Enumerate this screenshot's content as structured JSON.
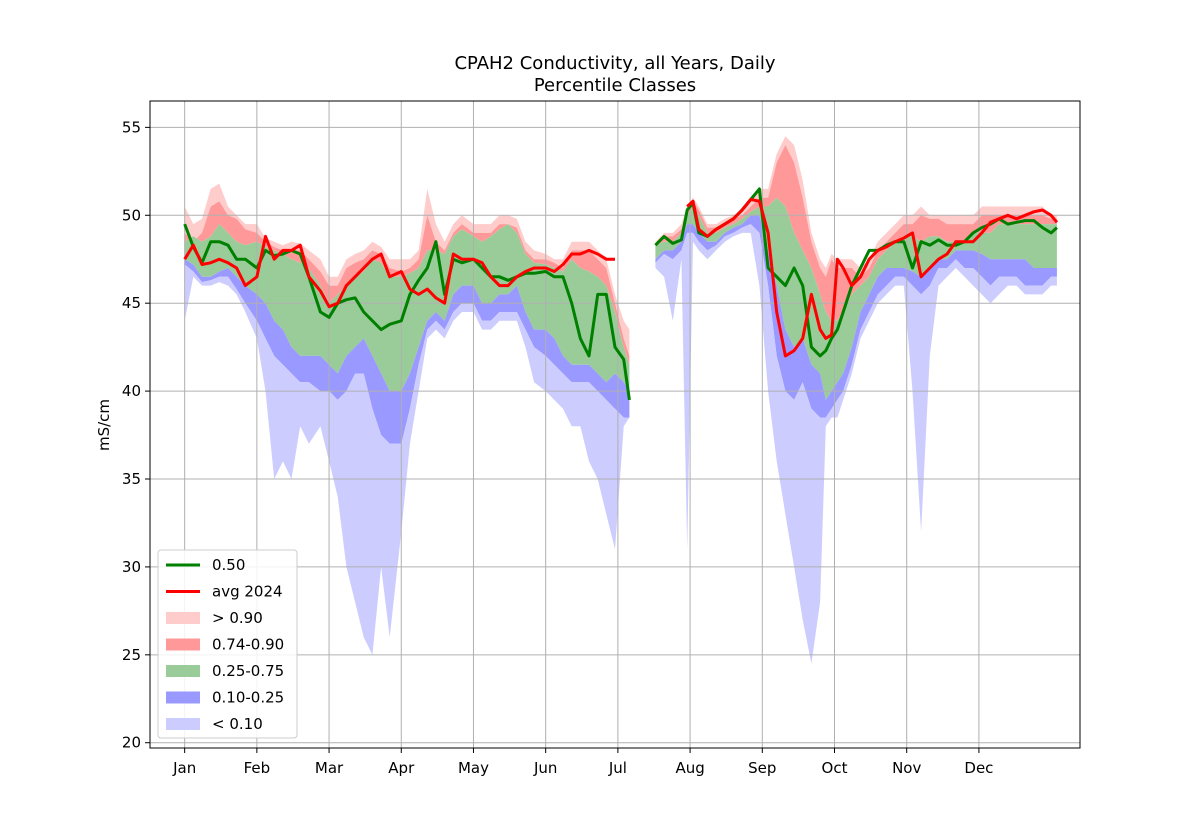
{
  "chart_data": {
    "type": "area",
    "title": "CPAH2 Conductivity, all Years, Daily",
    "subtitle": "Percentile Classes",
    "xlabel": "",
    "ylabel": "mS/cm",
    "ylim": [
      19.7,
      56.5
    ],
    "xlim": [
      -12,
      310
    ],
    "yticks": [
      20,
      25,
      30,
      35,
      40,
      45,
      50,
      55
    ],
    "categories": [
      "Jan",
      "Feb",
      "Mar",
      "Apr",
      "May",
      "Jun",
      "Jul",
      "Aug",
      "Sep",
      "Oct",
      "Nov",
      "Dec"
    ],
    "category_positions": [
      0,
      25,
      50,
      75,
      100,
      125,
      150,
      175,
      200,
      225,
      250,
      275
    ],
    "grid": true,
    "legend_position": "lower-left",
    "colors": {
      "median": "#008000",
      "avg": "#ff0000",
      "above_90": "#ffcccc",
      "p74_90": "#ff9999",
      "p25_75": "#99cc99",
      "p10_25": "#9999ff",
      "below_10": "#ccccff"
    },
    "legend": [
      {
        "label": "0.50",
        "kind": "line",
        "color": "#008000"
      },
      {
        "label": "avg 2024",
        "kind": "line",
        "color": "#ff0000"
      },
      {
        "label": "> 0.90",
        "kind": "patch",
        "color": "#ffcccc"
      },
      {
        "label": "0.74-0.90",
        "kind": "patch",
        "color": "#ff9999"
      },
      {
        "label": "0.25-0.75",
        "kind": "patch",
        "color": "#99cc99"
      },
      {
        "label": "0.10-0.25",
        "kind": "patch",
        "color": "#9999ff"
      },
      {
        "label": "< 0.10",
        "kind": "patch",
        "color": "#ccccff"
      }
    ],
    "segments": [
      {
        "x": [
          0,
          3,
          6,
          9,
          12,
          15,
          18,
          21,
          25,
          28,
          31,
          34,
          37,
          40,
          43,
          47,
          50,
          53,
          56,
          59,
          62,
          65,
          68,
          71,
          75,
          78,
          81,
          84,
          87,
          90,
          93,
          96,
          100,
          103,
          106,
          109,
          112,
          115,
          118,
          121,
          125,
          128,
          131,
          134,
          137,
          140,
          143,
          146,
          149,
          152,
          154
        ],
        "p100": [
          50.5,
          49.5,
          49.8,
          51.5,
          51.8,
          50.5,
          50.0,
          49.5,
          49.5,
          48.7,
          48.5,
          48.3,
          48.5,
          48.4,
          48.0,
          47.5,
          46.5,
          46.5,
          47.5,
          47.8,
          48.0,
          48.5,
          48.2,
          47.5,
          47.5,
          47.5,
          48.0,
          51.5,
          49.5,
          48.5,
          49.5,
          50.0,
          49.5,
          49.5,
          49.5,
          50.0,
          50.0,
          49.8,
          48.5,
          48.0,
          47.8,
          47.5,
          47.5,
          48.5,
          48.5,
          48.5,
          48.0,
          47.5,
          45.5,
          44.0,
          43.5
        ],
        "p90": [
          49.0,
          48.5,
          49.0,
          50.5,
          50.8,
          50.0,
          49.8,
          49.2,
          49.0,
          48.5,
          48.2,
          48.0,
          48.0,
          48.0,
          47.5,
          46.8,
          46.0,
          46.0,
          47.0,
          47.3,
          47.5,
          48.0,
          47.8,
          47.0,
          46.8,
          47.0,
          47.5,
          50.0,
          48.5,
          48.0,
          49.0,
          49.5,
          49.0,
          49.0,
          49.0,
          49.5,
          49.5,
          49.3,
          48.0,
          47.5,
          47.5,
          47.3,
          47.0,
          48.0,
          48.0,
          48.0,
          47.5,
          47.0,
          45.0,
          43.0,
          42.0
        ],
        "p75": [
          48.5,
          48.8,
          48.5,
          48.8,
          49.5,
          49.0,
          48.5,
          48.3,
          48.5,
          48.2,
          48.0,
          47.8,
          47.5,
          47.3,
          47.0,
          46.0,
          45.0,
          45.5,
          46.0,
          46.5,
          46.8,
          47.5,
          47.3,
          46.5,
          46.5,
          46.7,
          47.0,
          48.0,
          48.0,
          47.8,
          48.8,
          49.2,
          48.8,
          48.5,
          48.8,
          49.2,
          49.5,
          49.0,
          47.8,
          47.3,
          47.2,
          47.0,
          46.8,
          47.5,
          47.0,
          46.8,
          46.5,
          46.0,
          44.5,
          42.5,
          41.5
        ],
        "p25": [
          47.5,
          47.2,
          46.5,
          46.5,
          46.8,
          47.0,
          46.5,
          46.0,
          45.5,
          45.0,
          44.0,
          43.5,
          42.5,
          42.0,
          42.0,
          42.0,
          41.5,
          41.0,
          42.0,
          42.5,
          43.0,
          42.0,
          41.0,
          40.0,
          40.0,
          41.0,
          42.5,
          44.0,
          44.5,
          44.0,
          45.5,
          46.0,
          46.0,
          45.0,
          45.0,
          45.5,
          45.5,
          46.0,
          44.5,
          43.5,
          43.5,
          43.0,
          42.0,
          41.5,
          41.5,
          41.5,
          41.0,
          40.5,
          41.0,
          40.5,
          40.0
        ],
        "p10": [
          47.2,
          46.8,
          46.2,
          46.3,
          46.5,
          46.5,
          45.8,
          45.0,
          44.0,
          43.0,
          42.0,
          41.5,
          41.0,
          40.5,
          40.5,
          40.0,
          40.0,
          39.5,
          40.0,
          41.0,
          41.0,
          39.0,
          37.5,
          37.0,
          37.0,
          39.0,
          41.5,
          43.5,
          44.0,
          43.5,
          44.5,
          45.0,
          45.0,
          44.0,
          44.0,
          44.5,
          44.5,
          44.5,
          43.5,
          42.5,
          42.0,
          41.5,
          41.0,
          40.5,
          40.5,
          40.5,
          40.0,
          39.5,
          39.0,
          38.5,
          38.5
        ],
        "p0": [
          44.0,
          46.5,
          46.0,
          46.0,
          46.2,
          46.0,
          45.5,
          44.5,
          43.0,
          40.0,
          35.0,
          36.0,
          35.0,
          38.0,
          37.0,
          38.0,
          36.0,
          34.0,
          30.0,
          28.0,
          26.0,
          25.0,
          30.0,
          26.0,
          32.0,
          37.0,
          40.0,
          43.0,
          43.5,
          43.0,
          44.0,
          44.5,
          44.5,
          43.5,
          43.5,
          44.0,
          44.0,
          44.0,
          42.5,
          40.5,
          40.0,
          39.5,
          39.0,
          38.0,
          38.0,
          36.0,
          35.0,
          33.0,
          31.0,
          38.0,
          38.5
        ],
        "median": [
          49.5,
          48.2,
          47.3,
          48.5,
          48.5,
          48.3,
          47.5,
          47.5,
          47.0,
          48.0,
          47.7,
          47.8,
          48.0,
          47.8,
          46.5,
          44.5,
          44.2,
          45.0,
          45.2,
          45.3,
          44.5,
          44.0,
          43.5,
          43.8,
          44.0,
          45.5,
          46.3,
          47.0,
          48.5,
          45.5,
          47.5,
          47.3,
          47.5,
          47.0,
          46.5,
          46.5,
          46.3,
          46.5,
          46.7,
          46.7,
          46.8,
          46.5,
          46.5,
          45.0,
          43.0,
          42.0,
          45.5,
          45.5,
          42.5,
          41.8,
          39.5
        ],
        "avg": [
          47.5,
          48.3,
          47.2,
          47.3,
          47.5,
          47.3,
          47.0,
          46.0,
          46.5,
          48.8,
          47.5,
          48.0,
          48.0,
          48.3,
          46.5,
          45.7,
          44.8,
          45.0,
          46.0,
          46.5,
          47.0,
          47.5,
          47.8,
          46.5,
          46.8,
          45.8,
          45.5,
          45.8,
          45.3,
          45.0,
          47.8,
          47.5,
          47.5,
          47.3,
          46.5,
          46.0,
          46.0,
          46.5,
          46.8,
          47.0,
          47.0,
          46.8,
          47.2,
          47.8,
          47.8,
          48.0,
          47.8,
          47.5,
          47.5,
          null,
          null
        ]
      },
      {
        "x": [
          163,
          166,
          169,
          172,
          174,
          176,
          178,
          181,
          184,
          187,
          190,
          193,
          196,
          199,
          202,
          205,
          208,
          211,
          214,
          217,
          220,
          222,
          224,
          226,
          228,
          231,
          234,
          237,
          240,
          243,
          246,
          249,
          252,
          255,
          258,
          261,
          264,
          267,
          270,
          273,
          276,
          279,
          282,
          285,
          288,
          291,
          294,
          297,
          300,
          302
        ],
        "p100": [
          48.5,
          49.0,
          49.0,
          49.5,
          50.5,
          51.0,
          50.5,
          49.5,
          49.5,
          49.8,
          50.0,
          50.3,
          50.8,
          51.5,
          51.5,
          53.5,
          54.5,
          54.0,
          52.0,
          49.0,
          47.5,
          47.0,
          47.8,
          47.5,
          47.5,
          47.5,
          47.0,
          47.5,
          48.5,
          49.0,
          49.5,
          50.0,
          50.0,
          50.5,
          50.0,
          50.0,
          50.0,
          50.0,
          50.0,
          50.0,
          50.5,
          50.5,
          50.5,
          50.5,
          50.5,
          50.5,
          50.5,
          50.5,
          50.0,
          50.0
        ],
        "p90": [
          48.3,
          48.8,
          48.8,
          49.2,
          50.2,
          50.8,
          50.3,
          49.3,
          49.3,
          49.5,
          49.8,
          50.0,
          50.5,
          51.0,
          51.0,
          53.0,
          54.0,
          53.0,
          51.0,
          48.5,
          47.0,
          46.5,
          47.5,
          47.0,
          47.0,
          47.0,
          46.5,
          47.0,
          48.0,
          48.5,
          49.0,
          49.5,
          49.5,
          50.0,
          49.8,
          49.8,
          49.5,
          49.5,
          49.5,
          49.5,
          50.0,
          50.0,
          50.0,
          50.0,
          50.0,
          50.0,
          50.0,
          50.0,
          49.8,
          49.8
        ],
        "p75": [
          48.3,
          48.5,
          48.5,
          49.0,
          50.0,
          50.5,
          50.0,
          49.0,
          49.0,
          49.3,
          49.5,
          49.8,
          50.2,
          50.5,
          50.5,
          51.0,
          50.5,
          49.0,
          48.0,
          47.0,
          45.5,
          44.5,
          44.0,
          44.0,
          44.5,
          45.5,
          46.0,
          46.5,
          47.5,
          48.0,
          48.5,
          48.8,
          48.8,
          48.5,
          48.8,
          48.8,
          48.5,
          48.5,
          48.5,
          49.0,
          49.0,
          49.0,
          49.5,
          49.5,
          49.5,
          49.5,
          49.5,
          49.5,
          49.5,
          49.5
        ],
        "p25": [
          47.5,
          48.0,
          48.0,
          48.5,
          49.5,
          49.5,
          49.0,
          48.5,
          48.5,
          49.0,
          49.3,
          49.5,
          50.0,
          50.0,
          48.0,
          46.0,
          43.5,
          42.5,
          43.0,
          41.5,
          41.0,
          39.5,
          40.0,
          40.5,
          41.0,
          42.5,
          44.5,
          45.5,
          46.5,
          47.0,
          47.0,
          47.0,
          46.8,
          46.5,
          47.0,
          47.5,
          47.5,
          48.0,
          48.0,
          48.0,
          47.8,
          47.5,
          47.5,
          47.5,
          47.5,
          47.5,
          47.0,
          47.0,
          47.0,
          47.0
        ],
        "p10": [
          47.3,
          47.8,
          47.5,
          48.0,
          49.0,
          49.0,
          48.5,
          48.0,
          48.3,
          48.8,
          49.0,
          49.3,
          49.5,
          49.0,
          46.0,
          42.0,
          40.0,
          39.5,
          40.5,
          39.0,
          38.5,
          38.5,
          39.0,
          39.5,
          40.0,
          41.5,
          43.5,
          44.5,
          45.5,
          46.0,
          46.5,
          46.5,
          46.0,
          45.5,
          46.0,
          47.0,
          47.0,
          47.5,
          47.0,
          47.0,
          46.5,
          46.0,
          46.5,
          46.5,
          46.5,
          46.0,
          46.0,
          46.0,
          46.5,
          46.5
        ],
        "p0": [
          47.0,
          46.5,
          44.0,
          47.5,
          31.0,
          48.5,
          48.0,
          47.5,
          48.0,
          48.5,
          48.8,
          49.0,
          49.0,
          46.0,
          40.0,
          36.0,
          33.0,
          30.0,
          27.0,
          24.5,
          28.0,
          38.0,
          38.5,
          38.5,
          39.5,
          41.0,
          43.0,
          44.0,
          45.0,
          45.5,
          46.0,
          46.0,
          40.0,
          32.0,
          42.0,
          46.0,
          46.5,
          47.0,
          46.5,
          46.0,
          45.5,
          45.0,
          45.5,
          46.0,
          46.0,
          45.5,
          45.5,
          45.5,
          46.0,
          46.0
        ],
        "median": [
          48.3,
          48.8,
          48.4,
          48.6,
          50.3,
          50.7,
          49.0,
          48.8,
          49.2,
          49.5,
          49.8,
          50.3,
          50.9,
          51.5,
          47.0,
          46.5,
          46.0,
          47.0,
          46.0,
          42.5,
          42.0,
          42.3,
          43.0,
          43.5,
          44.5,
          46.0,
          47.0,
          48.0,
          48.0,
          48.3,
          48.5,
          48.5,
          47.0,
          48.5,
          48.3,
          48.6,
          48.3,
          48.3,
          48.5,
          49.0,
          49.3,
          49.5,
          49.8,
          49.5,
          49.6,
          49.7,
          49.7,
          49.3,
          49.0,
          49.3
        ],
        "avg": [
          null,
          null,
          null,
          null,
          50.5,
          50.8,
          49.2,
          48.8,
          49.2,
          49.5,
          49.8,
          50.3,
          50.9,
          50.8,
          49.0,
          44.5,
          42.0,
          42.3,
          43.0,
          45.5,
          43.5,
          43.0,
          43.2,
          47.5,
          47.0,
          46.0,
          46.5,
          47.5,
          48.0,
          48.2,
          48.5,
          48.7,
          49.0,
          46.5,
          47.0,
          47.5,
          47.8,
          48.5,
          48.5,
          48.5,
          49.0,
          49.6,
          49.8,
          50.0,
          49.8,
          50.0,
          50.2,
          50.3,
          50.0,
          49.6
        ]
      }
    ]
  }
}
